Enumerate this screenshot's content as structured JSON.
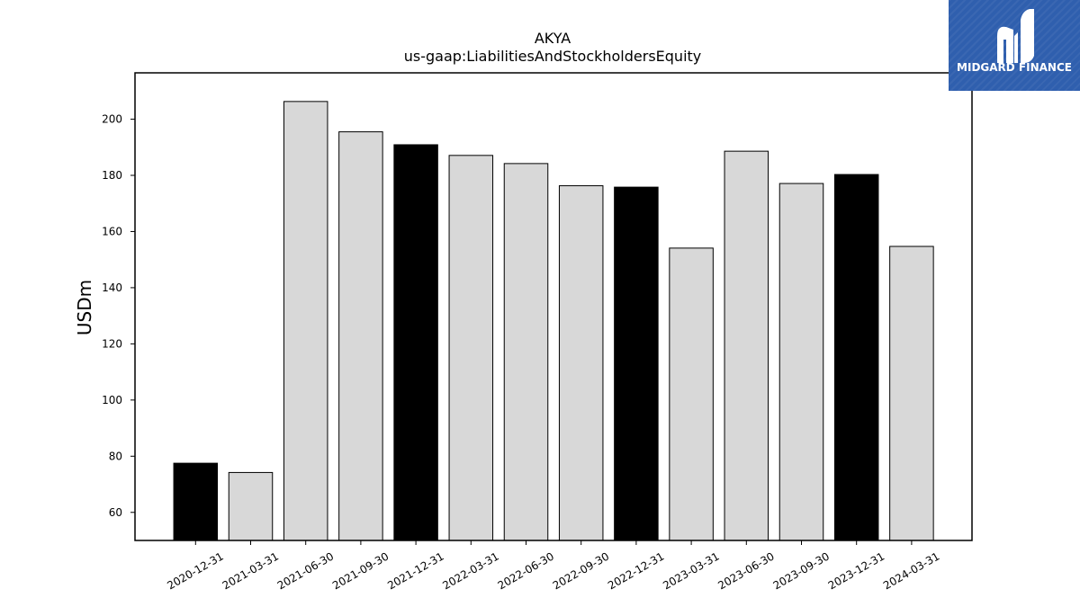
{
  "chart_data": {
    "type": "bar",
    "title": "AKYA",
    "subtitle": "us-gaap:LiabilitiesAndStockholdersEquity",
    "xlabel": "",
    "ylabel": "USDm",
    "ylim": [
      50,
      216.5
    ],
    "yticks": [
      60,
      80,
      100,
      120,
      140,
      160,
      180,
      200
    ],
    "grid": false,
    "categories": [
      "2020-12-31",
      "2021-03-31",
      "2021-06-30",
      "2021-09-30",
      "2021-12-31",
      "2022-03-31",
      "2022-06-30",
      "2022-09-30",
      "2022-12-31",
      "2023-03-31",
      "2023-06-30",
      "2023-09-30",
      "2023-12-31",
      "2024-03-31"
    ],
    "values": [
      77.5,
      74.2,
      206.3,
      195.5,
      190.9,
      187.1,
      184.2,
      176.3,
      175.8,
      154.1,
      188.6,
      177.1,
      180.3,
      154.7
    ],
    "bar_colors": [
      "#000000",
      "#d8d8d8",
      "#d8d8d8",
      "#d8d8d8",
      "#000000",
      "#d8d8d8",
      "#d8d8d8",
      "#d8d8d8",
      "#000000",
      "#d8d8d8",
      "#d8d8d8",
      "#d8d8d8",
      "#000000",
      "#d8d8d8"
    ]
  },
  "logo": {
    "text": "MIDGARD FINANCE",
    "background": "#2f5fae",
    "icon": "midgard-m-logo-icon"
  }
}
